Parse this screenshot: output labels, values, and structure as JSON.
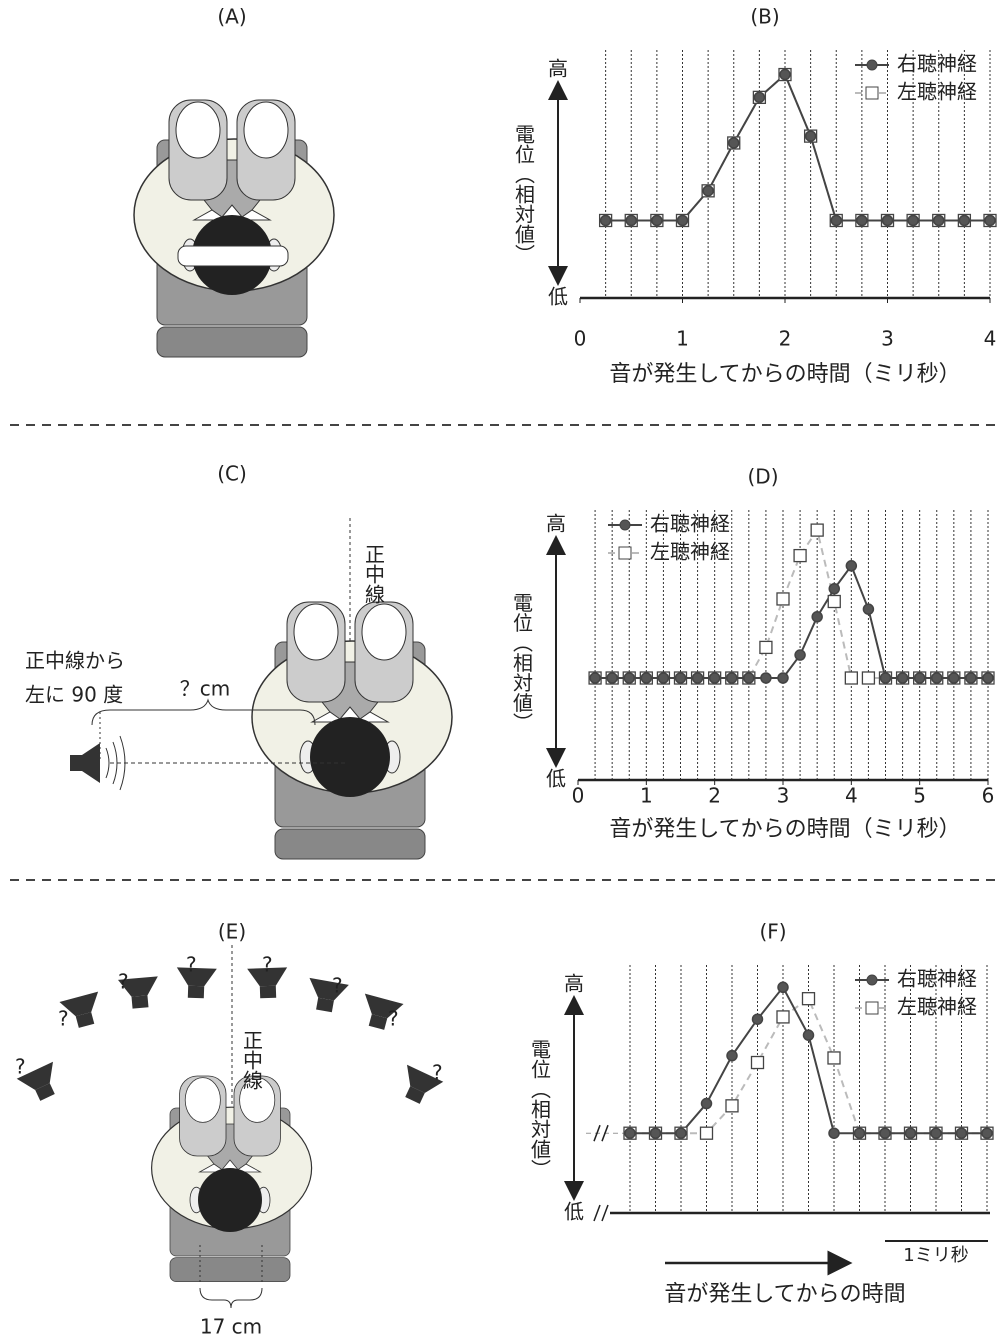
{
  "panel_a": {
    "label": "(A)"
  },
  "panel_c": {
    "label": "(C)",
    "midline": "正中線",
    "speaker_position": [
      "正中線から",
      "左に 90 度"
    ],
    "distance": "？cm"
  },
  "panel_e": {
    "label": "(E)",
    "midline": "正中線",
    "unknown": "?",
    "head_width": "17 cm"
  },
  "chart_data": [
    {
      "type": "line",
      "title": "(B)",
      "xlabel": "音が発生してからの時間（ミリ秒）",
      "ylabel": "電位（相対値）",
      "x": [
        0.25,
        0.5,
        0.75,
        1,
        1.25,
        1.5,
        1.75,
        2,
        2.25,
        2.5,
        2.75,
        3,
        3.25,
        3.5,
        3.75,
        4
      ],
      "xlim": [
        0,
        4
      ],
      "xticks": [
        0,
        1,
        2,
        3,
        4
      ],
      "ylim": [
        0,
        100
      ],
      "yticks": [
        {
          "value": 0,
          "label": "低"
        },
        {
          "value": 100,
          "label": "高"
        }
      ],
      "legend": "upper right",
      "series": [
        {
          "name": "右聴神経",
          "color": "#444444",
          "marker": "circle",
          "line_style": "solid",
          "values": [
            34,
            34,
            34,
            34,
            47,
            68,
            88,
            98,
            71,
            34,
            34,
            34,
            34,
            34,
            34,
            34
          ]
        },
        {
          "name": "左聴神経",
          "color": "#bbbbbb",
          "marker": "square",
          "line_style": "dashed",
          "values": [
            34,
            34,
            34,
            34,
            47,
            68,
            88,
            98,
            71,
            34,
            34,
            34,
            34,
            34,
            34,
            34
          ]
        }
      ]
    },
    {
      "type": "line",
      "title": "(D)",
      "xlabel": "音が発生してからの時間（ミリ秒）",
      "ylabel": "電位（相対値）",
      "x": [
        0.25,
        0.5,
        0.75,
        1,
        1.25,
        1.5,
        1.75,
        2,
        2.25,
        2.5,
        2.75,
        3,
        3.25,
        3.5,
        3.75,
        4,
        4.25,
        4.5,
        4.75,
        5,
        5.25,
        5.5,
        5.75,
        6
      ],
      "xlim": [
        0,
        6
      ],
      "xticks": [
        0,
        1,
        2,
        3,
        4,
        5,
        6
      ],
      "ylim": [
        0,
        100
      ],
      "yticks": [
        {
          "value": 0,
          "label": "低"
        },
        {
          "value": 100,
          "label": "高"
        }
      ],
      "legend": "upper left",
      "series": [
        {
          "name": "右聴神経",
          "color": "#444444",
          "marker": "circle",
          "line_style": "solid",
          "values": [
            40,
            40,
            40,
            40,
            40,
            40,
            40,
            40,
            40,
            40,
            40,
            40,
            49,
            64,
            75,
            84,
            67,
            40,
            40,
            40,
            40,
            40,
            40,
            40
          ]
        },
        {
          "name": "左聴神経",
          "color": "#bbbbbb",
          "marker": "square",
          "line_style": "dashed",
          "values": [
            40,
            40,
            40,
            40,
            40,
            40,
            40,
            40,
            40,
            40,
            52,
            71,
            88,
            98,
            70,
            40,
            40,
            40,
            40,
            40,
            40,
            40,
            40,
            40
          ]
        }
      ]
    },
    {
      "type": "line",
      "title": "(F)",
      "xlabel": "音が発生してからの時間",
      "ylabel": "電位（相対値）",
      "scale_bar": "1ミリ秒",
      "axis_break": true,
      "categories": [
        null,
        null,
        null,
        null,
        null,
        null,
        null,
        null,
        null,
        null,
        null,
        null,
        null,
        null,
        null
      ],
      "ylim": [
        0,
        100
      ],
      "yticks": [
        {
          "value": 0,
          "label": "低"
        },
        {
          "value": 100,
          "label": "高"
        }
      ],
      "legend": "upper right",
      "series": [
        {
          "name": "右聴神経",
          "color": "#444444",
          "marker": "circle",
          "line_style": "solid",
          "values": [
            35,
            35,
            35,
            48,
            69,
            85,
            99,
            78,
            35,
            35,
            35,
            35,
            35,
            35,
            35
          ]
        },
        {
          "name": "左聴神経",
          "color": "#bbbbbb",
          "marker": "square",
          "line_style": "dashed",
          "values": [
            35,
            35,
            35,
            35,
            47,
            66,
            86,
            94,
            68,
            35,
            35,
            35,
            35,
            35,
            35
          ]
        }
      ]
    }
  ]
}
